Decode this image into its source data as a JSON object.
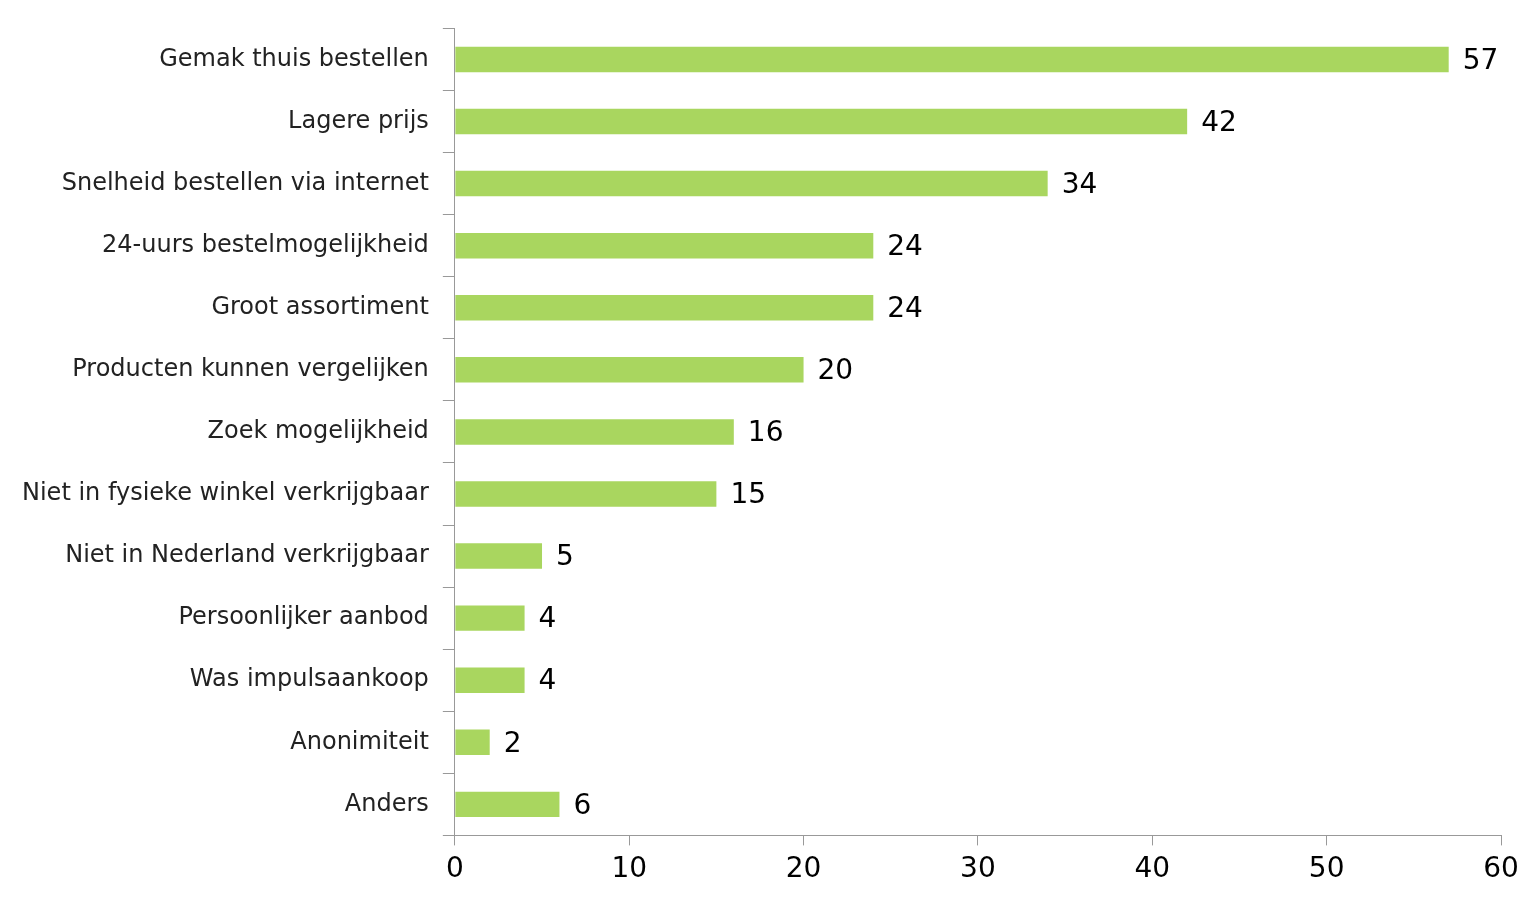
{
  "chart_data": {
    "type": "bar",
    "orientation": "horizontal",
    "categories": [
      "Gemak thuis bestellen",
      "Lagere prijs",
      "Snelheid bestellen via internet",
      "24-uurs bestelmogelijkheid",
      "Groot assortiment",
      "Producten kunnen vergelijken",
      "Zoek mogelijkheid",
      "Niet in fysieke winkel verkrijgbaar",
      "Niet in Nederland verkrijgbaar",
      "Persoonlijker aanbod",
      "Was impulsaankoop",
      "Anonimiteit",
      "Anders"
    ],
    "values": [
      57,
      42,
      34,
      24,
      24,
      20,
      16,
      15,
      5,
      4,
      4,
      2,
      6
    ],
    "color": "#a9d65f",
    "xlim": [
      0,
      60
    ],
    "xticks": [
      0,
      10,
      20,
      30,
      40,
      50,
      60
    ],
    "data_labels": true,
    "grid": false,
    "legend": false
  }
}
